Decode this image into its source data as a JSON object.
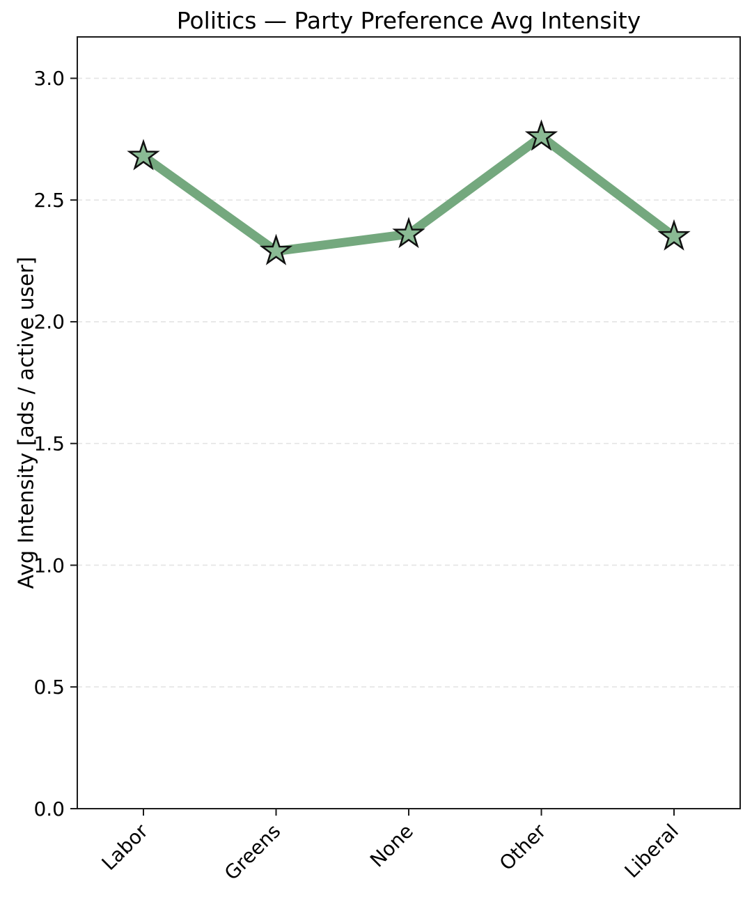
{
  "chart_data": {
    "type": "line",
    "title": "Politics — Party Preference Avg Intensity",
    "xlabel": "",
    "ylabel": "Avg Intensity [ads / active user]",
    "categories": [
      "Labor",
      "Greens",
      "None",
      "Other",
      "Liberal"
    ],
    "series": [
      {
        "name": "Avg Intensity",
        "values": [
          2.68,
          2.29,
          2.36,
          2.76,
          2.35
        ]
      }
    ],
    "yticks": [
      0.0,
      0.5,
      1.0,
      1.5,
      2.0,
      2.5,
      3.0
    ],
    "ytick_labels": [
      "0.0",
      "0.5",
      "1.0",
      "1.5",
      "2.0",
      "2.5",
      "3.0"
    ],
    "ylim": [
      0,
      3.17
    ],
    "xtick_rotation_deg": 45,
    "grid": "horizontal-dashed",
    "legend": "none",
    "marker": "star",
    "colors": {
      "line": "#74a87e",
      "marker_fill": "#8aba94",
      "marker_edge": "#111111",
      "grid": "#e4e4e4",
      "spine": "#1a1a1a",
      "text": "#000000"
    }
  }
}
